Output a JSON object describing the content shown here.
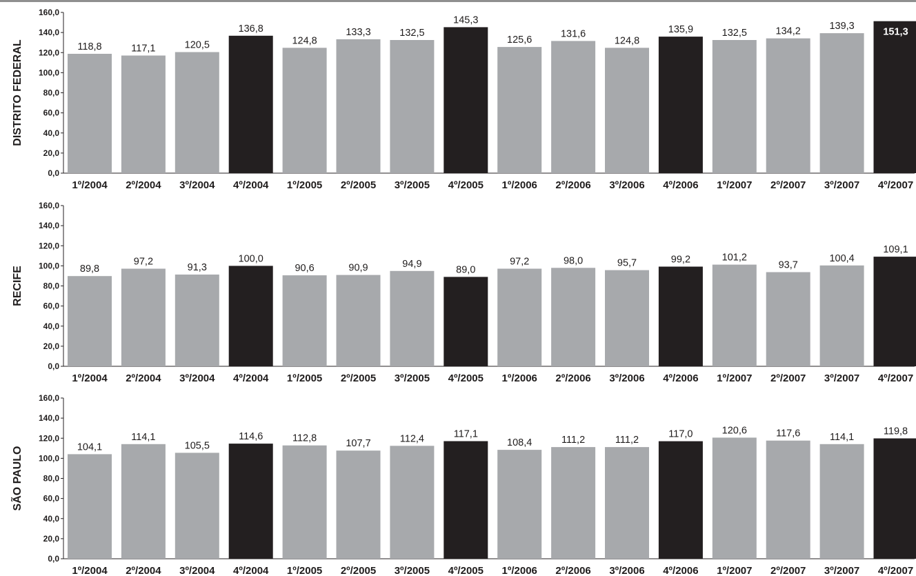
{
  "colors": {
    "regular": "#a7a9ac",
    "highlight": "#231f20",
    "axis": "#231f20",
    "text": "#1f1c1c"
  },
  "chart_data": [
    {
      "type": "bar",
      "ylabel": "DISTRITO FEDERAL",
      "ylim": [
        0,
        160
      ],
      "yticks": [
        "0,0",
        "20,0",
        "40,0",
        "60,0",
        "80,0",
        "100,0",
        "120,0",
        "140,0",
        "160,0"
      ],
      "categories": [
        "1º/2004",
        "2º/2004",
        "3º/2004",
        "4º/2004",
        "1º/2005",
        "2º/2005",
        "3º/2005",
        "4º/2005",
        "1º/2006",
        "2º/2006",
        "3º/2006",
        "4º/2006",
        "1º/2007",
        "2º/2007",
        "3º/2007",
        "4º/2007"
      ],
      "values": [
        118.8,
        117.1,
        120.5,
        136.8,
        124.8,
        133.3,
        132.5,
        145.3,
        125.6,
        131.6,
        124.8,
        135.9,
        132.5,
        134.2,
        139.3,
        151.3
      ],
      "labels": [
        "118,8",
        "117,1",
        "120,5",
        "136,8",
        "124,8",
        "133,3",
        "132,5",
        "145,3",
        "125,6",
        "131,6",
        "124,8",
        "135,9",
        "132,5",
        "134,2",
        "139,3",
        "151,3"
      ],
      "highlight": [
        3,
        7,
        11,
        15
      ],
      "label_inside": [
        15
      ]
    },
    {
      "type": "bar",
      "ylabel": "RECIFE",
      "ylim": [
        0,
        160
      ],
      "yticks": [
        "0,0",
        "20,0",
        "40,0",
        "60,0",
        "80,0",
        "100,0",
        "120,0",
        "140,0",
        "160,0"
      ],
      "categories": [
        "1º/2004",
        "2º/2004",
        "3º/2004",
        "4º/2004",
        "1º/2005",
        "2º/2005",
        "3º/2005",
        "4º/2005",
        "1º/2006",
        "2º/2006",
        "3º/2006",
        "4º/2006",
        "1º/2007",
        "2º/2007",
        "3º/2007",
        "4º/2007"
      ],
      "values": [
        89.8,
        97.2,
        91.3,
        100.0,
        90.6,
        90.9,
        94.9,
        89.0,
        97.2,
        98.0,
        95.7,
        99.2,
        101.2,
        93.7,
        100.4,
        109.1
      ],
      "labels": [
        "89,8",
        "97,2",
        "91,3",
        "100,0",
        "90,6",
        "90,9",
        "94,9",
        "89,0",
        "97,2",
        "98,0",
        "95,7",
        "99,2",
        "101,2",
        "93,7",
        "100,4",
        "109,1"
      ],
      "highlight": [
        3,
        7,
        11,
        15
      ],
      "label_inside": []
    },
    {
      "type": "bar",
      "ylabel": "SÃO PAULO",
      "ylim": [
        0,
        160
      ],
      "yticks": [
        "0,0",
        "20,0",
        "40,0",
        "60,0",
        "80,0",
        "100,0",
        "120,0",
        "140,0",
        "160,0"
      ],
      "categories": [
        "1º/2004",
        "2º/2004",
        "3º/2004",
        "4º/2004",
        "1º/2005",
        "2º/2005",
        "3º/2005",
        "4º/2005",
        "1º/2006",
        "2º/2006",
        "3º/2006",
        "4º/2006",
        "1º/2007",
        "2º/2007",
        "3º/2007",
        "4º/2007"
      ],
      "values": [
        104.1,
        114.1,
        105.5,
        114.6,
        112.8,
        107.7,
        112.4,
        117.1,
        108.4,
        111.2,
        111.2,
        117.0,
        120.6,
        117.6,
        114.1,
        119.8
      ],
      "labels": [
        "104,1",
        "114,1",
        "105,5",
        "114,6",
        "112,8",
        "107,7",
        "112,4",
        "117,1",
        "108,4",
        "111,2",
        "111,2",
        "117,0",
        "120,6",
        "117,6",
        "114,1",
        "119,8"
      ],
      "highlight": [
        3,
        7,
        11,
        15
      ],
      "label_inside": []
    }
  ]
}
